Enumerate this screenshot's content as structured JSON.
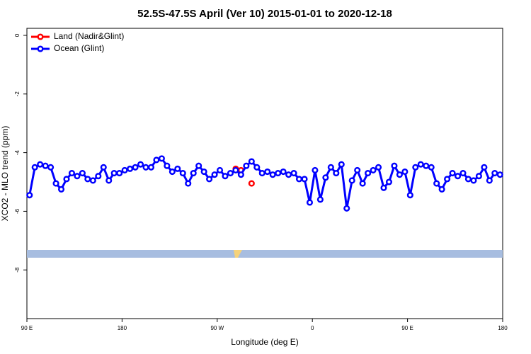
{
  "chart_data": {
    "type": "line",
    "title": "52.5S-47.5S April (Ver 10)   2015-01-01 to 2020-12-18",
    "xlabel": "Longitude (deg E)",
    "ylabel": "XCO2 - MLO trend (ppm)",
    "xlim": [
      90,
      540
    ],
    "ylim": [
      -9.66,
      0.24
    ],
    "xticks": [
      {
        "value": 90,
        "label": "90 E"
      },
      180,
      {
        "value": 270,
        "label": "90 W"
      },
      {
        "value": 360,
        "label": "0"
      },
      {
        "value": 450,
        "label": "90 E"
      },
      {
        "value": 540,
        "label": "180"
      }
    ],
    "yticks": [
      0,
      -2,
      -4,
      -6,
      -8
    ],
    "legend": "top-left",
    "series": [
      {
        "name": "Land (Nadir&Glint)",
        "color": "#ff0000",
        "x": [
          287.5,
          292.5,
          302.5
        ],
        "values": [
          -4.55,
          -4.6,
          -5.05
        ]
      },
      {
        "name": "Ocean (Glint)",
        "color": "#0000ff",
        "x": [
          92.5,
          97.5,
          102.5,
          107.5,
          112.5,
          117.5,
          122.5,
          127.5,
          132.5,
          137.5,
          142.5,
          147.5,
          152.5,
          157.5,
          162.5,
          167.5,
          172.5,
          177.5,
          182.5,
          187.5,
          192.5,
          197.5,
          202.5,
          207.5,
          212.5,
          217.5,
          222.5,
          227.5,
          232.5,
          237.5,
          242.5,
          247.5,
          252.5,
          257.5,
          262.5,
          267.5,
          272.5,
          277.5,
          282.5,
          287.5,
          292.5,
          297.5,
          302.5,
          307.5,
          312.5,
          317.5,
          322.5,
          327.5,
          332.5,
          337.5,
          342.5,
          347.5,
          352.5,
          357.5,
          362.5,
          367.5,
          372.5,
          377.5,
          382.5,
          387.5,
          392.5,
          397.5,
          402.5,
          407.5,
          412.5,
          417.5,
          422.5,
          427.5,
          432.5,
          437.5,
          442.5,
          447.5,
          452.5,
          457.5,
          462.5,
          467.5,
          472.5,
          477.5,
          482.5,
          487.5,
          492.5,
          497.5,
          502.5,
          507.5,
          512.5,
          517.5,
          522.5,
          527.5,
          532.5,
          537.5
        ],
        "values": [
          -5.45,
          -4.5,
          -4.4,
          -4.45,
          -4.5,
          -5.05,
          -5.25,
          -4.9,
          -4.7,
          -4.8,
          -4.7,
          -4.9,
          -4.95,
          -4.8,
          -4.5,
          -4.95,
          -4.7,
          -4.7,
          -4.6,
          -4.55,
          -4.5,
          -4.4,
          -4.5,
          -4.5,
          -4.25,
          -4.2,
          -4.45,
          -4.65,
          -4.55,
          -4.7,
          -5.05,
          -4.7,
          -4.45,
          -4.65,
          -4.9,
          -4.75,
          -4.6,
          -4.8,
          -4.7,
          -4.6,
          -4.75,
          -4.45,
          -4.3,
          -4.5,
          -4.7,
          -4.65,
          -4.75,
          -4.7,
          -4.65,
          -4.75,
          -4.7,
          -4.9,
          -4.9,
          -5.7,
          -4.6,
          -5.6,
          -4.85,
          -4.5,
          -4.7,
          -4.4,
          -5.9,
          -4.95,
          -4.6,
          -5.05,
          -4.7,
          -4.6,
          -4.5,
          -5.2,
          -5.0,
          -4.45,
          -4.75,
          -4.65,
          -5.45,
          -4.5,
          -4.4,
          -4.45,
          -4.5,
          -5.05,
          -5.25,
          -4.9,
          -4.7,
          -4.8,
          -4.7,
          -4.9,
          -4.95,
          -4.8,
          -4.5,
          -4.95,
          -4.7,
          -4.75
        ]
      }
    ]
  }
}
